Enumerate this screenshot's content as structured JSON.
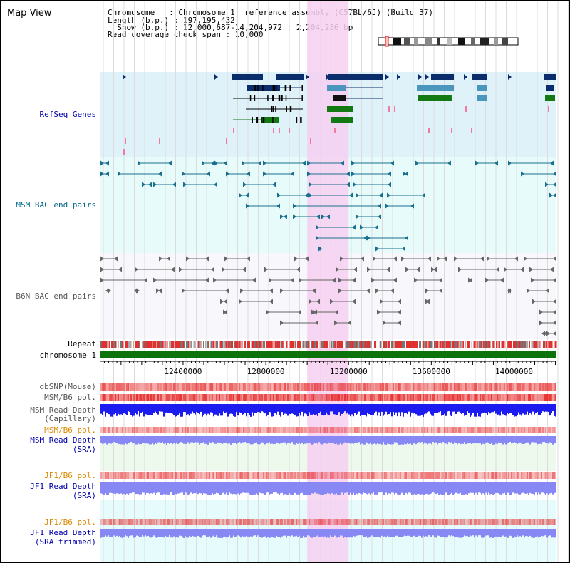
{
  "view_title": "Map View",
  "info": {
    "line1": "Chromosome   : Chromosome 1, reference assembly (C57BL/6J) (Build 37)",
    "line2": "Length (b.p.) : 197,195,432",
    "line3": "  Show (b.p.) : 12,000,687-14,204,972 : 2,204,286 bp",
    "line4": "Read coverage check span : 10,000"
  },
  "tracks": {
    "refseq": "RefSeq Genes",
    "msm_bac": "MSM BAC end pairs",
    "b6n_bac": "B6N BAC end pairs",
    "repeat": "Repeat",
    "chromosome": "chromosome 1",
    "dbsnp": "dbSNP(Mouse)",
    "msm_pol1": "MSM/B6 pol.",
    "msm_depth_cap_1": "MSM Read Depth",
    "msm_depth_cap_2": "(Capillary)",
    "msm_pol2": "MSM/B6 pol.",
    "msm_depth_sra_1": "MSM Read Depth",
    "msm_depth_sra_2": "(SRA)",
    "jf1_pol1": "JF1/B6 pol.",
    "jf1_depth_sra_1": "JF1 Read Depth",
    "jf1_depth_sra_2": "(SRA)",
    "jf1_pol2": "JF1/B6 pol.",
    "jf1_depth_trim_1": "JF1 Read Depth",
    "jf1_depth_trim_2": "(SRA trimmed)"
  },
  "axis": {
    "ticks": [
      "12400000",
      "12800000",
      "13200000",
      "13600000",
      "14000000"
    ],
    "start": 12000687,
    "end": 14204972
  },
  "highlight": {
    "start": 13000000,
    "end": 13200000
  },
  "colors": {
    "refseq_bg": "#dff2fa",
    "msm_bg": "#e7fbfb",
    "b6n_bg": "#f7f7fc",
    "highlight": "#f6d0f0",
    "gene_navy": "#0b2d6b",
    "gene_light": "#4a96bc",
    "gene_green": "#137a13",
    "msm_line": "#1a6f8f",
    "b6n_line": "#666666",
    "chrom_green": "#0c730c",
    "depth_blue": "#1c1cf0",
    "depth_light": "#8888f4"
  }
}
